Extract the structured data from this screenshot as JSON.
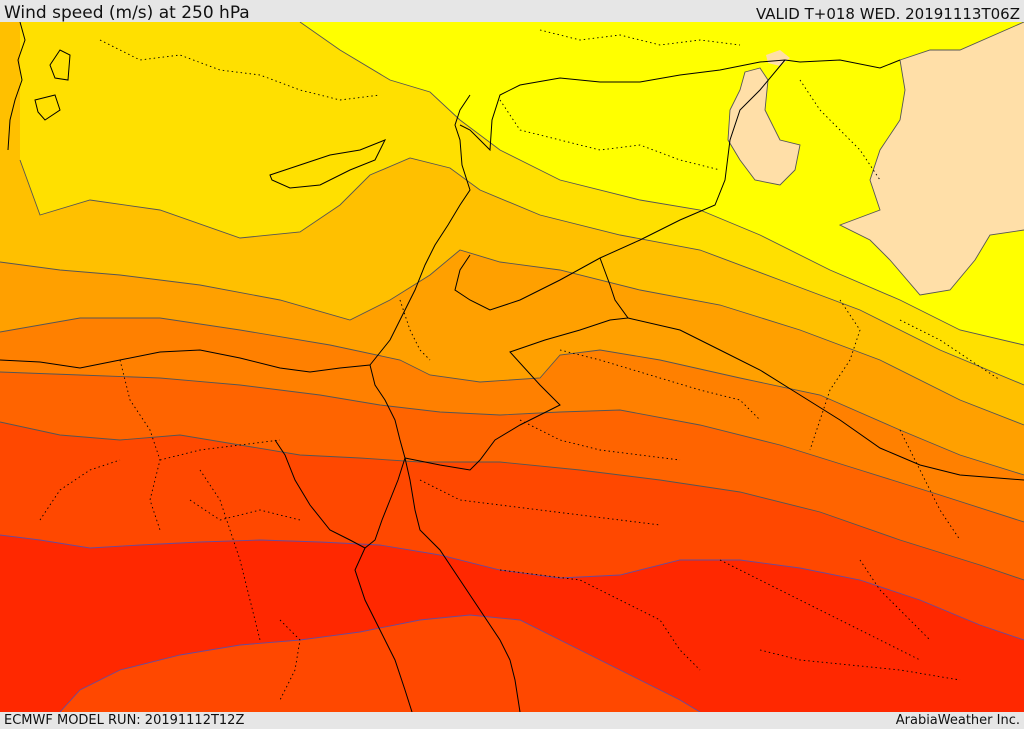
{
  "header": {
    "title": "Wind speed (m/s) at 250 hPa",
    "valid_time": "VALID T+018 WED. 20191113T06Z"
  },
  "footer": {
    "model_run": "ECMWF MODEL RUN: 20191112T12Z",
    "credit": "ArabiaWeather Inc."
  },
  "colors": {
    "band_1": "#ffff00",
    "band_2": "#ffe000",
    "band_3": "#ffc000",
    "band_4": "#ffa000",
    "band_5": "#ff8000",
    "band_6": "#ff6400",
    "band_7": "#ff4800",
    "band_8": "#ff2800",
    "band_light": "#ffdfa8",
    "contour_line": "#555555",
    "border_line": "#000000"
  }
}
